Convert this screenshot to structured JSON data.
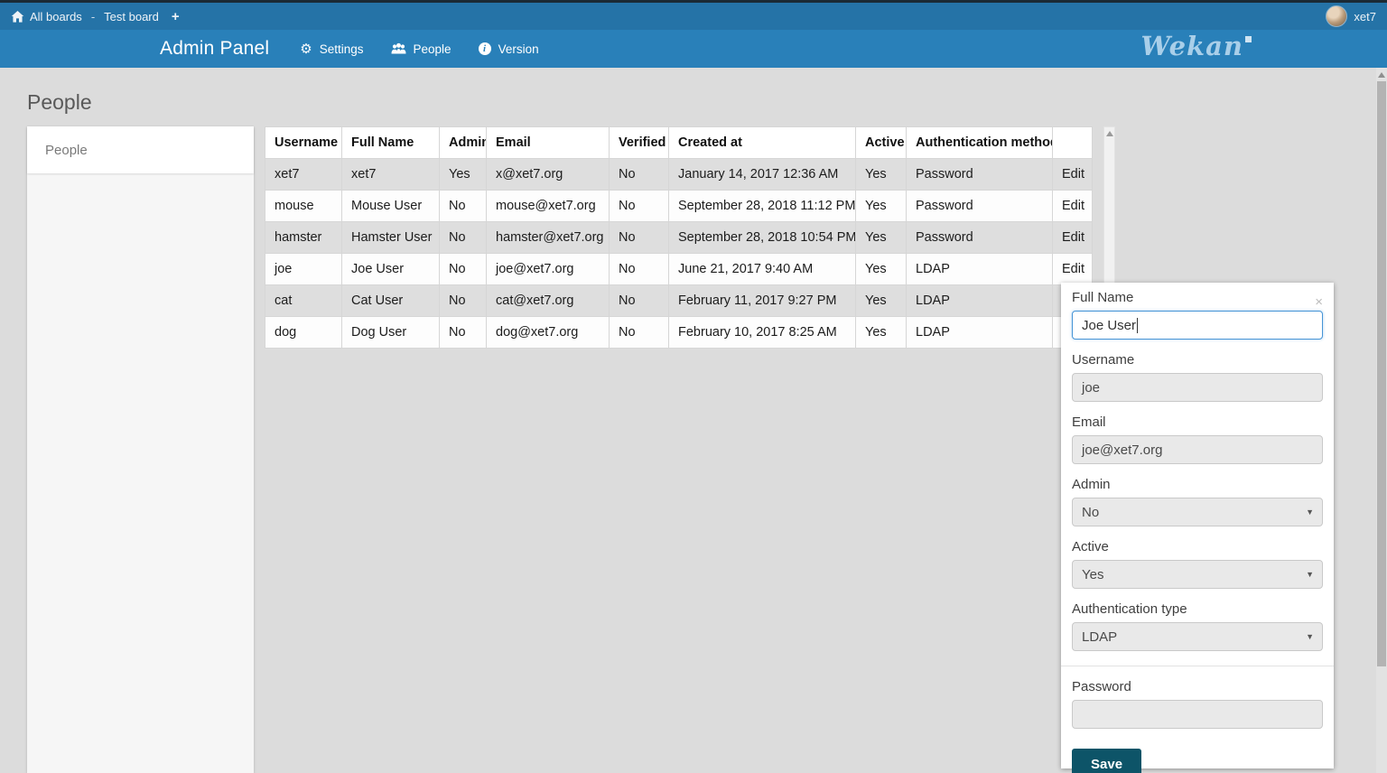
{
  "topbar": {
    "breadcrumb": {
      "all_boards": "All boards",
      "separator": "-",
      "board_name": "Test board",
      "add_board": "+"
    },
    "user": {
      "name": "xet7"
    }
  },
  "header": {
    "title": "Admin Panel",
    "nav": {
      "settings": "Settings",
      "people": "People",
      "version": "Version"
    },
    "logo_text": "Wekan"
  },
  "page": {
    "title": "People"
  },
  "sidebar": {
    "items": [
      {
        "label": "People",
        "active": true
      }
    ]
  },
  "table": {
    "columns": [
      "Username",
      "Full Name",
      "Admin",
      "Email",
      "Verified",
      "Created at",
      "Active",
      "Authentication method",
      ""
    ],
    "edit_label": "Edit",
    "rows": [
      [
        "xet7",
        "xet7",
        "Yes",
        "x@xet7.org",
        "No",
        "January 14, 2017 12:36 AM",
        "Yes",
        "Password"
      ],
      [
        "mouse",
        "Mouse User",
        "No",
        "mouse@xet7.org",
        "No",
        "September 28, 2018 11:12 PM",
        "Yes",
        "Password"
      ],
      [
        "hamster",
        "Hamster User",
        "No",
        "hamster@xet7.org",
        "No",
        "September 28, 2018 10:54 PM",
        "Yes",
        "Password"
      ],
      [
        "joe",
        "Joe User",
        "No",
        "joe@xet7.org",
        "No",
        "June 21, 2017 9:40 AM",
        "Yes",
        "LDAP"
      ],
      [
        "cat",
        "Cat User",
        "No",
        "cat@xet7.org",
        "No",
        "February 11, 2017 9:27 PM",
        "Yes",
        "LDAP"
      ],
      [
        "dog",
        "Dog User",
        "No",
        "dog@xet7.org",
        "No",
        "February 10, 2017 8:25 AM",
        "Yes",
        "LDAP"
      ]
    ]
  },
  "edit_panel": {
    "close_icon": "×",
    "full_name": {
      "label": "Full Name",
      "value": "Joe User"
    },
    "username": {
      "label": "Username",
      "value": "joe"
    },
    "email": {
      "label": "Email",
      "value": "joe@xet7.org"
    },
    "admin": {
      "label": "Admin",
      "value": "No"
    },
    "active": {
      "label": "Active",
      "value": "Yes"
    },
    "auth_type": {
      "label": "Authentication type",
      "value": "LDAP"
    },
    "password": {
      "label": "Password",
      "value": ""
    },
    "save_label": "Save"
  },
  "colors": {
    "topbar": "#2573a7",
    "header": "#2980b9",
    "page_background": "#dcdcdc",
    "save_button": "#0d5468",
    "row_stripe": "#dedede",
    "focused_border": "#4795d6"
  }
}
